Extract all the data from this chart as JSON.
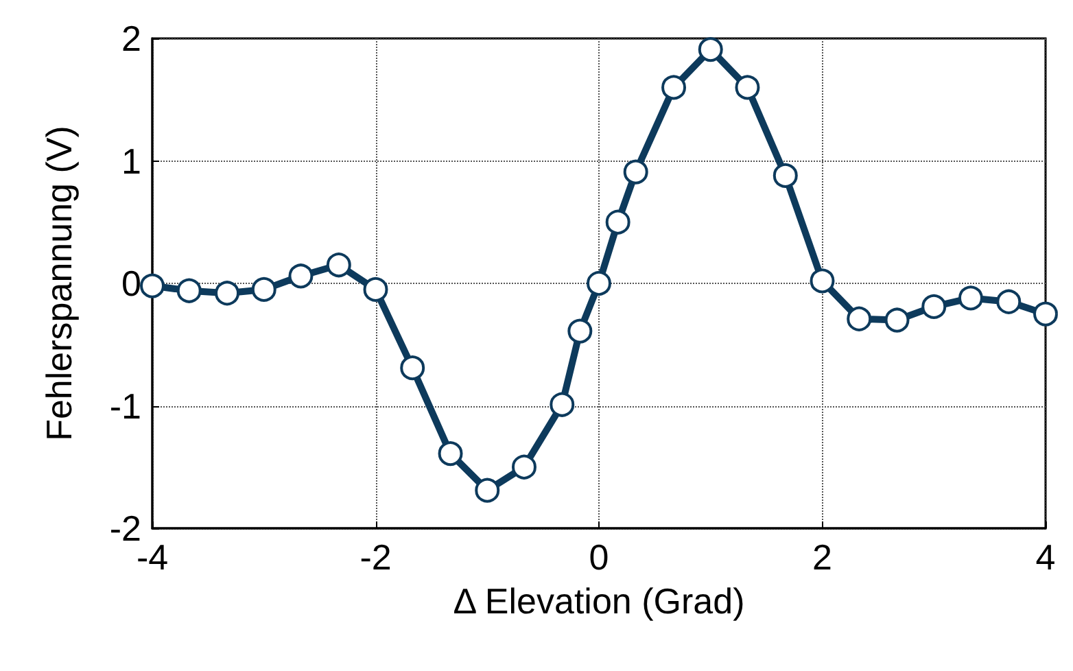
{
  "chart_data": {
    "type": "line",
    "xlabel": "Δ Elevation (Grad)",
    "ylabel": "Fehlerspannung (V)",
    "xlim": [
      -4,
      4
    ],
    "xticks": [
      -4,
      -2,
      0,
      2,
      4
    ],
    "ylim": [
      -2,
      2
    ],
    "yticks": [
      -2,
      -1,
      0,
      1,
      2
    ],
    "grid": true,
    "marker": "circle",
    "line_style": "solid",
    "series": [
      {
        "color": "#0d3a5c",
        "x": [
          -4,
          -3.67,
          -3.33,
          -3,
          -2.67,
          -2.33,
          -2,
          -1.67,
          -1.33,
          -1,
          -0.67,
          -0.33,
          -0.17,
          0,
          0.17,
          0.33,
          0.67,
          1,
          1.33,
          1.67,
          2,
          2.33,
          2.67,
          3,
          3.33,
          3.67,
          4
        ],
        "values": [
          -0.02,
          -0.06,
          -0.08,
          -0.05,
          0.06,
          0.15,
          -0.05,
          -0.69,
          -1.39,
          -1.69,
          -1.5,
          -0.99,
          -0.39,
          0,
          0.5,
          0.91,
          1.6,
          1.91,
          1.6,
          0.88,
          0.02,
          -0.29,
          -0.3,
          -0.19,
          -0.12,
          -0.15,
          -0.25
        ]
      }
    ]
  }
}
